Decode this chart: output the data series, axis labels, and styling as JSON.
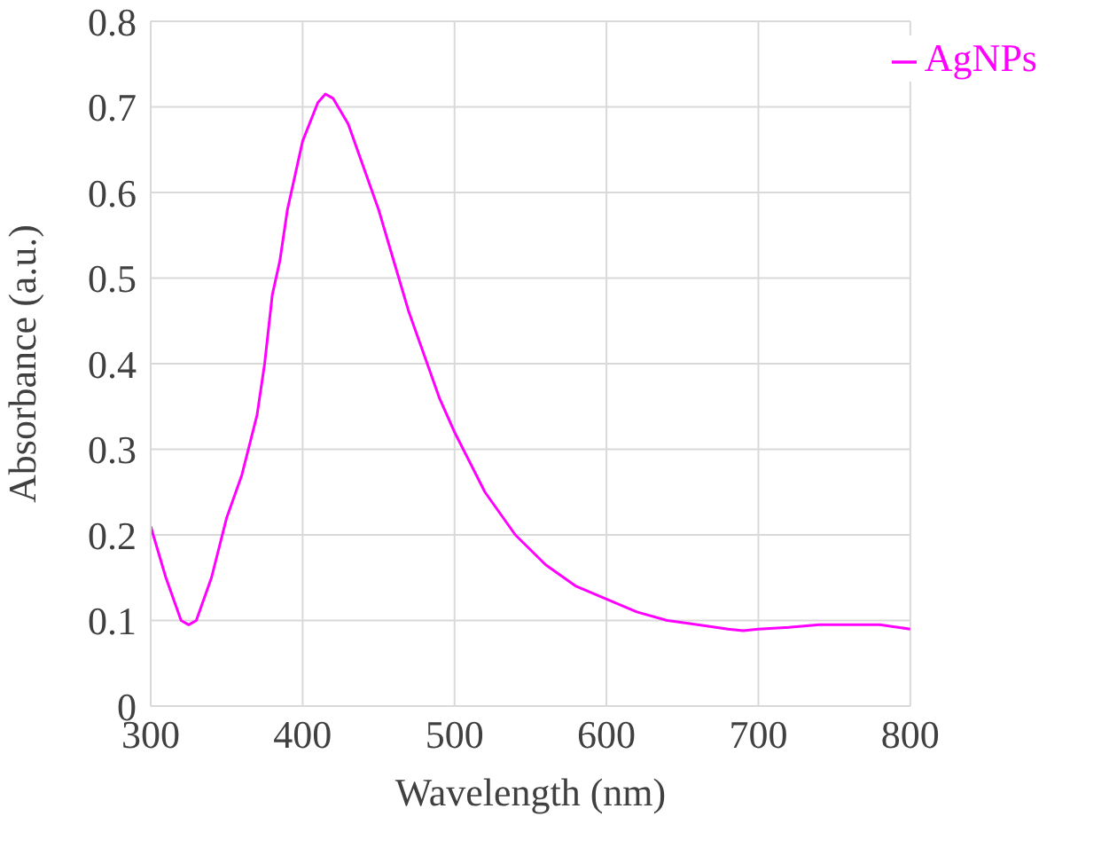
{
  "chart_data": {
    "type": "line",
    "xlabel": "Wavelength (nm)",
    "ylabel": "Absorbance (a.u.)",
    "x": [
      300,
      310,
      320,
      325,
      330,
      340,
      350,
      360,
      370,
      375,
      380,
      385,
      390,
      400,
      410,
      415,
      420,
      430,
      440,
      450,
      460,
      470,
      480,
      490,
      500,
      520,
      540,
      560,
      580,
      600,
      620,
      640,
      660,
      680,
      690,
      700,
      720,
      740,
      760,
      780,
      800
    ],
    "series": [
      {
        "name": "AgNPs",
        "color": "#ff00ff",
        "values": [
          0.21,
          0.15,
          0.1,
          0.095,
          0.1,
          0.15,
          0.22,
          0.27,
          0.34,
          0.4,
          0.48,
          0.52,
          0.58,
          0.66,
          0.705,
          0.715,
          0.71,
          0.68,
          0.63,
          0.58,
          0.52,
          0.46,
          0.41,
          0.36,
          0.32,
          0.25,
          0.2,
          0.165,
          0.14,
          0.125,
          0.11,
          0.1,
          0.095,
          0.09,
          0.088,
          0.09,
          0.092,
          0.095,
          0.095,
          0.095,
          0.09
        ]
      }
    ],
    "xlim": [
      300,
      800
    ],
    "xticks": [
      300,
      400,
      500,
      600,
      700,
      800
    ],
    "ylim": [
      0,
      0.8
    ],
    "yticks": [
      0,
      0.1,
      0.2,
      0.3,
      0.4,
      0.5,
      0.6,
      0.7,
      0.8
    ],
    "grid": true,
    "legend": "top right",
    "marker": "none",
    "line_style": "solid"
  }
}
